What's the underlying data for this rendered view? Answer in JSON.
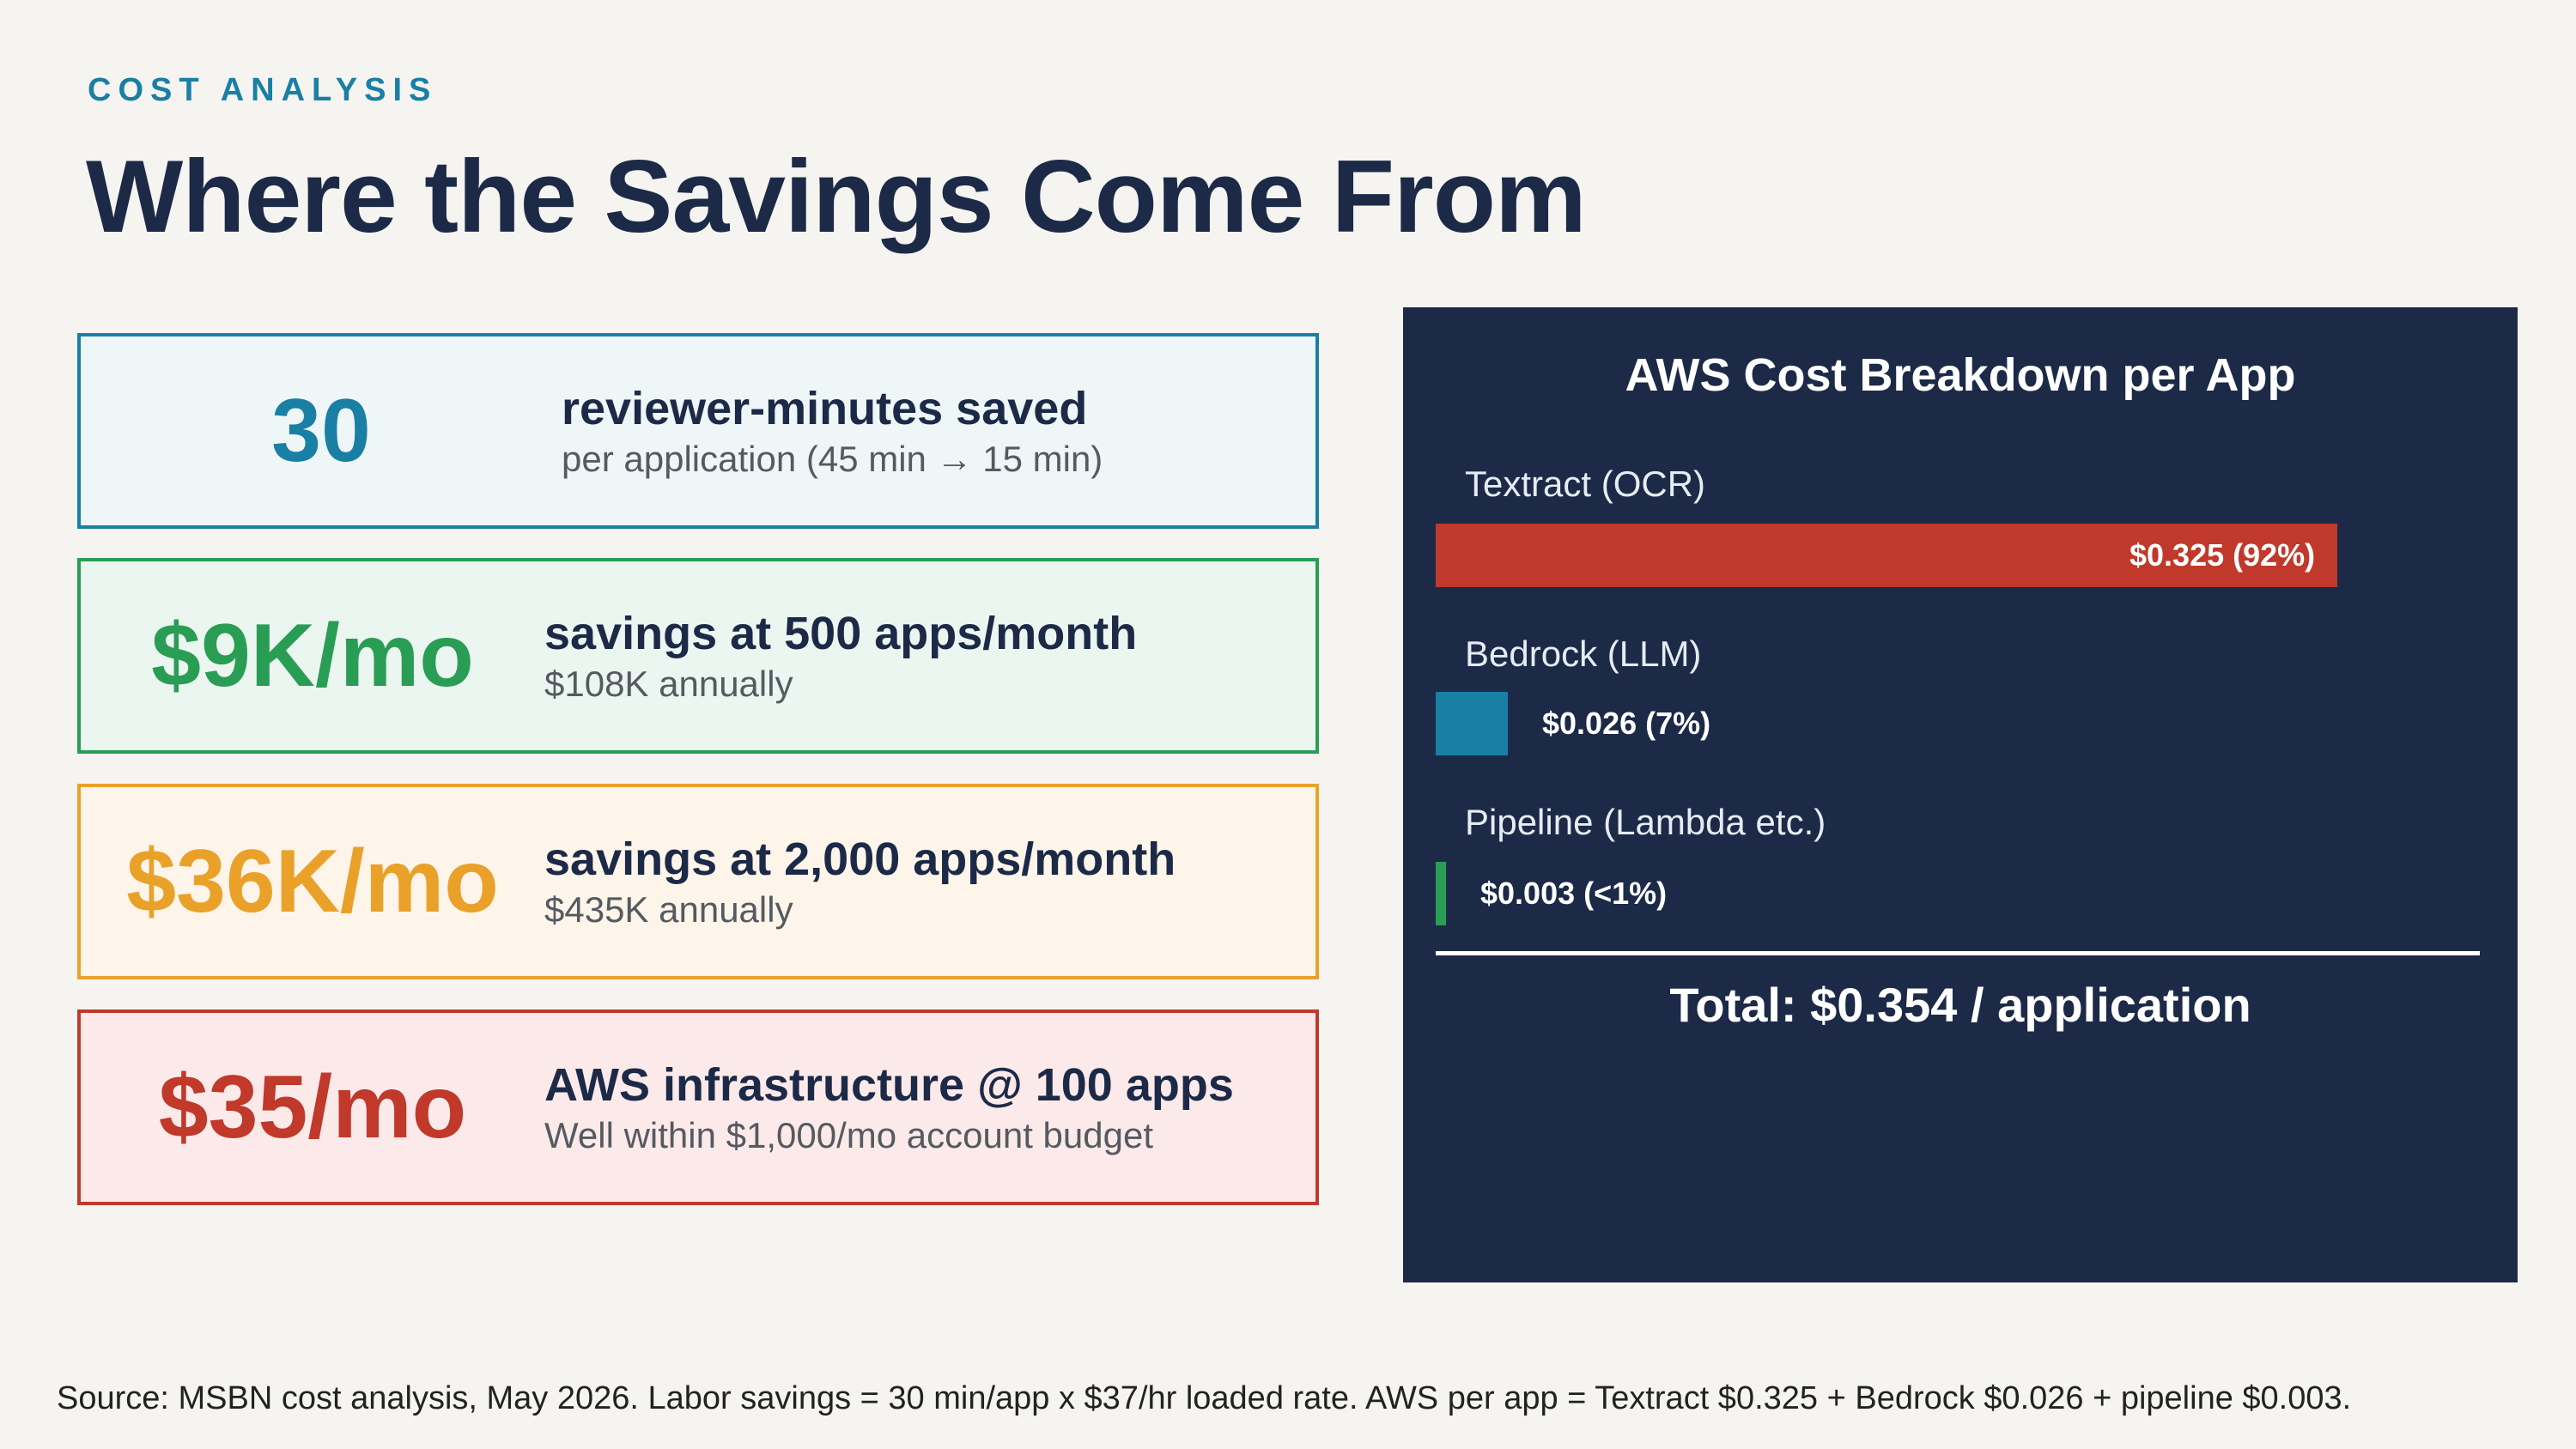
{
  "header": {
    "eyebrow": "COST ANALYSIS",
    "title": "Where the Savings Come From"
  },
  "cards": [
    {
      "value": "30",
      "headline": "reviewer-minutes saved",
      "detail": "per application (45 min → 15 min)",
      "color": "#1a7fa5"
    },
    {
      "value": "$9K/mo",
      "headline": "savings at 500 apps/month",
      "detail": "$108K annually",
      "color": "#2a9d55"
    },
    {
      "value": "$36K/mo",
      "headline": "savings at 2,000 apps/month",
      "detail": "$435K annually",
      "color": "#eaa12a"
    },
    {
      "value": "$35/mo",
      "headline": "AWS infrastructure @ 100 apps",
      "detail": "Well within $1,000/mo account budget",
      "color": "#c0392b"
    }
  ],
  "chart_data": {
    "type": "bar",
    "title": "AWS Cost Breakdown per App",
    "categories": [
      "Textract (OCR)",
      "Bedrock (LLM)",
      "Pipeline (Lambda etc.)"
    ],
    "values": [
      0.325,
      0.026,
      0.003
    ],
    "value_labels": [
      "$0.325 (92%)",
      "$0.026 (7%)",
      "$0.003 (<1%)"
    ],
    "colors": [
      "#c0392b",
      "#1a7fa5",
      "#2a9d55"
    ],
    "total_label": "Total: $0.354 / application"
  },
  "footer": {
    "source": "Source: MSBN cost analysis, May 2026. Labor savings = 30 min/app x $37/hr loaded rate. AWS per app = Textract $0.325 + Bedrock $0.026 + pipeline $0.003."
  }
}
